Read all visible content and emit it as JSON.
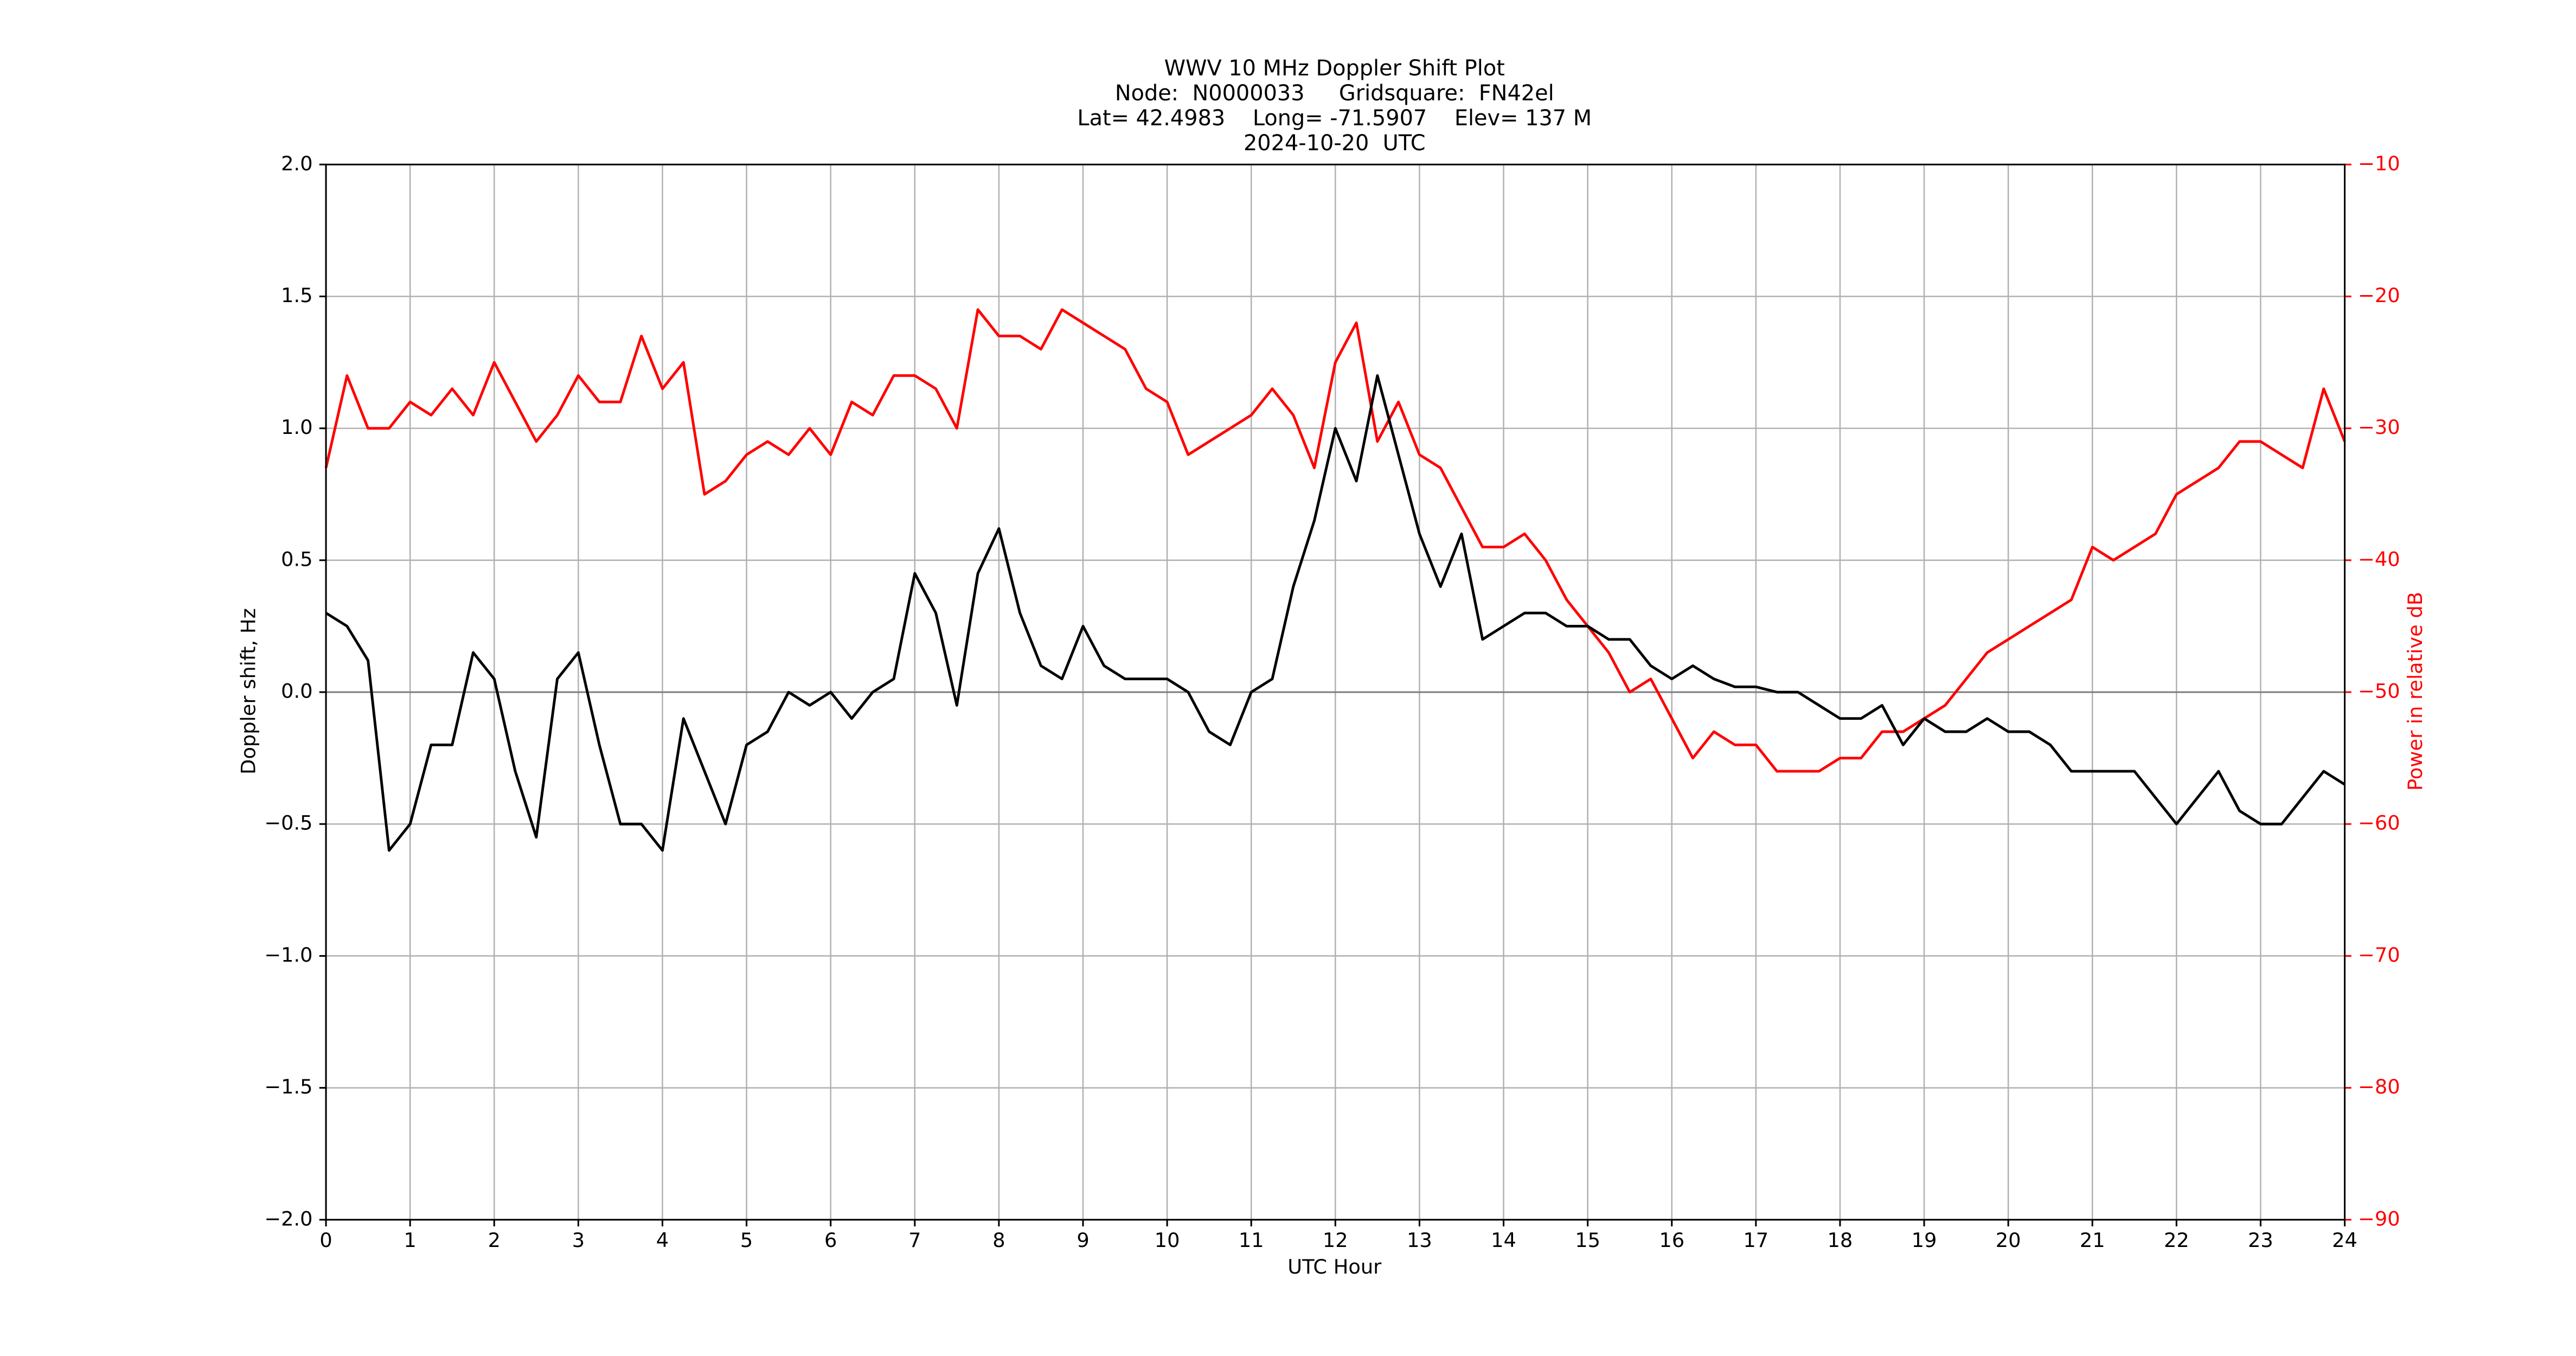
{
  "chart_data": {
    "type": "line",
    "title": [
      "WWV 10 MHz Doppler Shift Plot",
      "Node:  N0000033     Gridsquare:  FN42el",
      "Lat= 42.4983    Long= -71.5907    Elev= 137 M",
      "2024-10-20  UTC"
    ],
    "xlabel": "UTC Hour",
    "ylabel": "Doppler shift, Hz",
    "y2label": "Power in relative dB",
    "y2color": "#ff0000",
    "grid": true,
    "zero_line": 0,
    "xlim": [
      0,
      24
    ],
    "xticks": [
      0,
      1,
      2,
      3,
      4,
      5,
      6,
      7,
      8,
      9,
      10,
      11,
      12,
      13,
      14,
      15,
      16,
      17,
      18,
      19,
      20,
      21,
      22,
      23,
      24
    ],
    "ylim": [
      -2,
      2
    ],
    "yticks": [
      {
        "value": -2,
        "label": "−2.0"
      },
      {
        "value": -1.5,
        "label": "−1.5"
      },
      {
        "value": -1,
        "label": "−1.0"
      },
      {
        "value": -0.5,
        "label": "−0.5"
      },
      {
        "value": 0,
        "label": "0.0"
      },
      {
        "value": 0.5,
        "label": "0.5"
      },
      {
        "value": 1,
        "label": "1.0"
      },
      {
        "value": 1.5,
        "label": "1.5"
      },
      {
        "value": 2,
        "label": "2.0"
      }
    ],
    "y2lim": [
      -90,
      -10
    ],
    "y2ticks": [
      {
        "value": -90,
        "label": "−90"
      },
      {
        "value": -80,
        "label": "−80"
      },
      {
        "value": -70,
        "label": "−70"
      },
      {
        "value": -60,
        "label": "−60"
      },
      {
        "value": -50,
        "label": "−50"
      },
      {
        "value": -40,
        "label": "−40"
      },
      {
        "value": -30,
        "label": "−30"
      },
      {
        "value": -20,
        "label": "−20"
      },
      {
        "value": -10,
        "label": "−10"
      }
    ],
    "x": [
      0,
      0.25,
      0.5,
      0.75,
      1,
      1.25,
      1.5,
      1.75,
      2,
      2.25,
      2.5,
      2.75,
      3,
      3.25,
      3.5,
      3.75,
      4,
      4.25,
      4.5,
      4.75,
      5,
      5.25,
      5.5,
      5.75,
      6,
      6.25,
      6.5,
      6.75,
      7,
      7.25,
      7.5,
      7.75,
      8,
      8.25,
      8.5,
      8.75,
      9,
      9.25,
      9.5,
      9.75,
      10,
      10.25,
      10.5,
      10.75,
      11,
      11.25,
      11.5,
      11.75,
      12,
      12.25,
      12.5,
      12.75,
      13,
      13.25,
      13.5,
      13.75,
      14,
      14.25,
      14.5,
      14.75,
      15,
      15.25,
      15.5,
      15.75,
      16,
      16.25,
      16.5,
      16.75,
      17,
      17.25,
      17.5,
      17.75,
      18,
      18.25,
      18.5,
      18.75,
      19,
      19.25,
      19.5,
      19.75,
      20,
      20.25,
      20.5,
      20.75,
      21,
      21.25,
      21.5,
      21.75,
      22,
      22.25,
      22.5,
      22.75,
      23,
      23.25,
      23.5,
      23.75,
      24
    ],
    "series": [
      {
        "color": "#ff0000",
        "axis": "y2",
        "values": [
          -33,
          -26,
          -30,
          -30,
          -28,
          -29,
          -27,
          -29,
          -25,
          -28,
          -31,
          -29,
          -26,
          -28,
          -28,
          -23,
          -27,
          -25,
          -35,
          -34,
          -32,
          -31,
          -32,
          -30,
          -32,
          -28,
          -29,
          -26,
          -26,
          -27,
          -30,
          -21,
          -23,
          -23,
          -24,
          -21,
          -22,
          -23,
          -24,
          -27,
          -28,
          -32,
          -31,
          -30,
          -29,
          -27,
          -29,
          -33,
          -25,
          -22,
          -31,
          -28,
          -32,
          -33,
          -36,
          -39,
          -39,
          -38,
          -40,
          -43,
          -45,
          -47,
          -50,
          -49,
          -52,
          -55,
          -53,
          -54,
          -54,
          -56,
          -56,
          -56,
          -55,
          -55,
          -53,
          -53,
          -52,
          -51,
          -49,
          -47,
          -46,
          -45,
          -44,
          -43,
          -39,
          -40,
          -39,
          -38,
          -35,
          -34,
          -33,
          -31,
          -31,
          -32,
          -33,
          -27,
          -31
        ]
      },
      {
        "color": "#000000",
        "values": [
          0.3,
          0.25,
          0.12,
          -0.6,
          -0.5,
          -0.2,
          -0.2,
          0.15,
          0.05,
          -0.3,
          -0.55,
          0.05,
          0.15,
          -0.2,
          -0.5,
          -0.5,
          -0.6,
          -0.1,
          -0.3,
          -0.5,
          -0.2,
          -0.15,
          0.0,
          -0.05,
          0.0,
          -0.1,
          0.0,
          0.05,
          0.45,
          0.3,
          -0.05,
          0.45,
          0.62,
          0.3,
          0.1,
          0.05,
          0.25,
          0.1,
          0.05,
          0.05,
          0.05,
          0.0,
          -0.15,
          -0.2,
          0.0,
          0.05,
          0.4,
          0.65,
          1.0,
          0.8,
          1.2,
          0.9,
          0.6,
          0.4,
          0.6,
          0.2,
          0.25,
          0.3,
          0.3,
          0.25,
          0.25,
          0.2,
          0.2,
          0.1,
          0.05,
          0.1,
          0.05,
          0.02,
          0.02,
          0.0,
          0.0,
          -0.05,
          -0.1,
          -0.1,
          -0.05,
          -0.2,
          -0.1,
          -0.15,
          -0.15,
          -0.1,
          -0.15,
          -0.15,
          -0.2,
          -0.3,
          -0.3,
          -0.3,
          -0.3,
          -0.4,
          -0.5,
          -0.4,
          -0.3,
          -0.45,
          -0.5,
          -0.5,
          -0.4,
          -0.3,
          -0.35
        ]
      }
    ]
  }
}
